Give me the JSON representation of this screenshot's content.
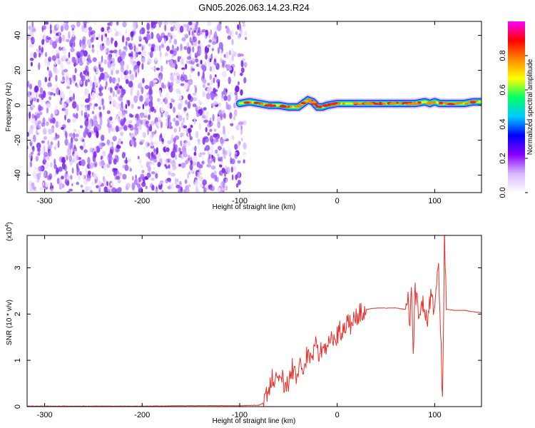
{
  "title": "GN05.2026.063.14.23.R24",
  "chart_data": [
    {
      "type": "heatmap",
      "title": "GN05.2026.063.14.23.R24",
      "xlabel": "Height of straight line (km)",
      "ylabel": "Frequency (Hz)",
      "xlim": [
        -318,
        148
      ],
      "ylim": [
        -50,
        48
      ],
      "xticks": [
        "-300",
        "-200",
        "-100",
        "0",
        "100"
      ],
      "xtick_values": [
        -300,
        -200,
        -100,
        0,
        100
      ],
      "yticks": [
        "40",
        "20",
        "0",
        "-20",
        "-40"
      ],
      "ytick_values": [
        40,
        20,
        0,
        -20,
        -40
      ],
      "noise_region_x": [
        -318,
        -90
      ],
      "signal_start_x": -100,
      "ridge": {
        "x": [
          -100,
          -90,
          -80,
          -70,
          -60,
          -50,
          -40,
          -35,
          -30,
          -25,
          -20,
          -15,
          -10,
          0,
          10,
          20,
          30,
          40,
          50,
          60,
          70,
          80,
          90,
          95,
          100,
          105,
          110,
          120,
          130,
          140,
          148
        ],
        "y": [
          1,
          2,
          1,
          0,
          0,
          -1,
          -1,
          1,
          3,
          2,
          -1,
          -1,
          0,
          1,
          1,
          1,
          1,
          1,
          1,
          1,
          1,
          1,
          2,
          1,
          2,
          1,
          1,
          1,
          1,
          2,
          2
        ]
      },
      "colorbar": {
        "label": "Normalized spectral amplitude",
        "ticks": [
          "0.0",
          "0.2",
          "0.4",
          "0.6",
          "0.8"
        ],
        "tick_values": [
          0.0,
          0.2,
          0.4,
          0.6,
          0.8
        ],
        "range": [
          0,
          1
        ],
        "colors": [
          "#ffffff",
          "#d8b8ff",
          "#8800ff",
          "#0000ff",
          "#00ccff",
          "#00ff66",
          "#ffff00",
          "#ff8800",
          "#ff0000",
          "#ff00ff"
        ]
      }
    },
    {
      "type": "line",
      "xlabel": "Height of straight line (km)",
      "ylabel": "SNR (10 * v/v)",
      "scale_label": "(x10",
      "scale_exponent": "4",
      "xlim": [
        -318,
        148
      ],
      "ylim": [
        0,
        3.7
      ],
      "xticks": [
        "-300",
        "-200",
        "-100",
        "0",
        "100"
      ],
      "xtick_values": [
        -300,
        -200,
        -100,
        0,
        100
      ],
      "yticks": [
        "0",
        "1",
        "2",
        "3"
      ],
      "ytick_values": [
        0,
        1,
        2,
        3
      ],
      "series": [
        {
          "name": "SNR",
          "color": "#e8302a",
          "x": [
            -318,
            -300,
            -250,
            -200,
            -150,
            -100,
            -80,
            -76,
            -70,
            -66,
            -62,
            -58,
            -54,
            -50,
            -46,
            -42,
            -38,
            -34,
            -30,
            -26,
            -22,
            -18,
            -14,
            -10,
            -6,
            -2,
            2,
            6,
            10,
            15,
            20,
            25,
            30,
            40,
            50,
            60,
            70,
            72,
            74,
            76,
            78,
            80,
            84,
            88,
            92,
            96,
            100,
            104,
            106,
            108,
            110,
            112,
            115,
            120,
            130,
            140,
            148
          ],
          "y": [
            0.01,
            0.01,
            0.01,
            0.01,
            0.02,
            0.02,
            0.03,
            0.08,
            0.3,
            0.65,
            0.55,
            0.7,
            0.45,
            0.5,
            0.85,
            0.6,
            1.1,
            0.75,
            1.25,
            0.95,
            1.35,
            1.1,
            1.45,
            1.2,
            1.55,
            1.4,
            1.65,
            1.6,
            1.8,
            1.75,
            1.95,
            2.05,
            2.1,
            2.13,
            2.13,
            2.13,
            2.1,
            2.45,
            1.7,
            2.7,
            1.25,
            2.5,
            1.9,
            2.35,
            1.75,
            2.4,
            2.2,
            3.1,
            1.6,
            0.12,
            3.65,
            2.1,
            2.1,
            2.08,
            2.08,
            2.05,
            2.03
          ]
        }
      ]
    }
  ]
}
